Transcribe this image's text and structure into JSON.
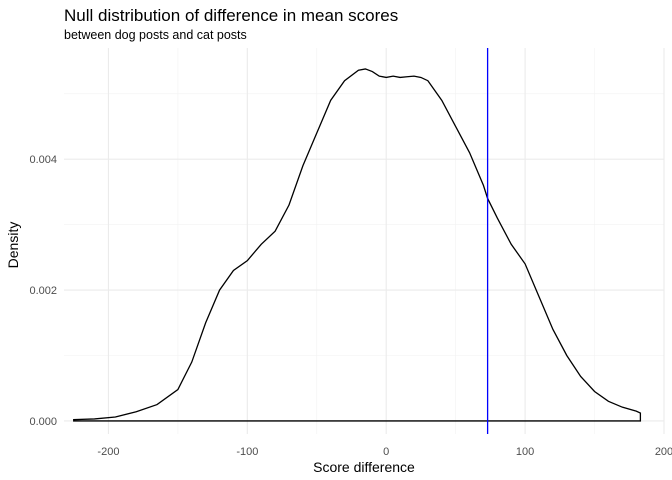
{
  "chart_data": {
    "type": "line",
    "title": "Null distribution of difference in mean scores",
    "subtitle": "between dog posts and cat posts",
    "xlabel": "Score difference",
    "ylabel": "Density",
    "xlim": [
      -232,
      200
    ],
    "ylim": [
      -0.0002,
      0.0057
    ],
    "x_ticks": [
      -200,
      -100,
      0,
      100,
      200
    ],
    "x_tick_labels": [
      "-200",
      "-100",
      "0",
      "100",
      "200"
    ],
    "y_ticks": [
      0.0,
      0.002,
      0.004
    ],
    "y_tick_labels": [
      "0.000",
      "0.002",
      "0.004"
    ],
    "grid": true,
    "series": [
      {
        "x": [
          -225,
          -210,
          -195,
          -180,
          -165,
          -150,
          -140,
          -130,
          -120,
          -110,
          -100,
          -90,
          -80,
          -70,
          -60,
          -50,
          -40,
          -30,
          -20,
          -15,
          -10,
          -5,
          0,
          5,
          10,
          15,
          20,
          25,
          30,
          40,
          50,
          60,
          70,
          73,
          80,
          90,
          100,
          110,
          120,
          130,
          140,
          150,
          160,
          170,
          180,
          183
        ],
        "y": [
          2e-05,
          3e-05,
          6e-05,
          0.00014,
          0.00025,
          0.00048,
          0.0009,
          0.0015,
          0.002,
          0.0023,
          0.00245,
          0.0027,
          0.0029,
          0.0033,
          0.0039,
          0.0044,
          0.0049,
          0.0052,
          0.00536,
          0.00538,
          0.00534,
          0.00527,
          0.00525,
          0.00527,
          0.00525,
          0.00526,
          0.00527,
          0.00525,
          0.0052,
          0.0049,
          0.0045,
          0.0041,
          0.0036,
          0.0034,
          0.0031,
          0.0027,
          0.0024,
          0.0019,
          0.0014,
          0.001,
          0.00068,
          0.00045,
          0.0003,
          0.00021,
          0.00015,
          0.00012
        ]
      }
    ],
    "reference_line": {
      "x": 73,
      "color": "#0000ff"
    }
  }
}
